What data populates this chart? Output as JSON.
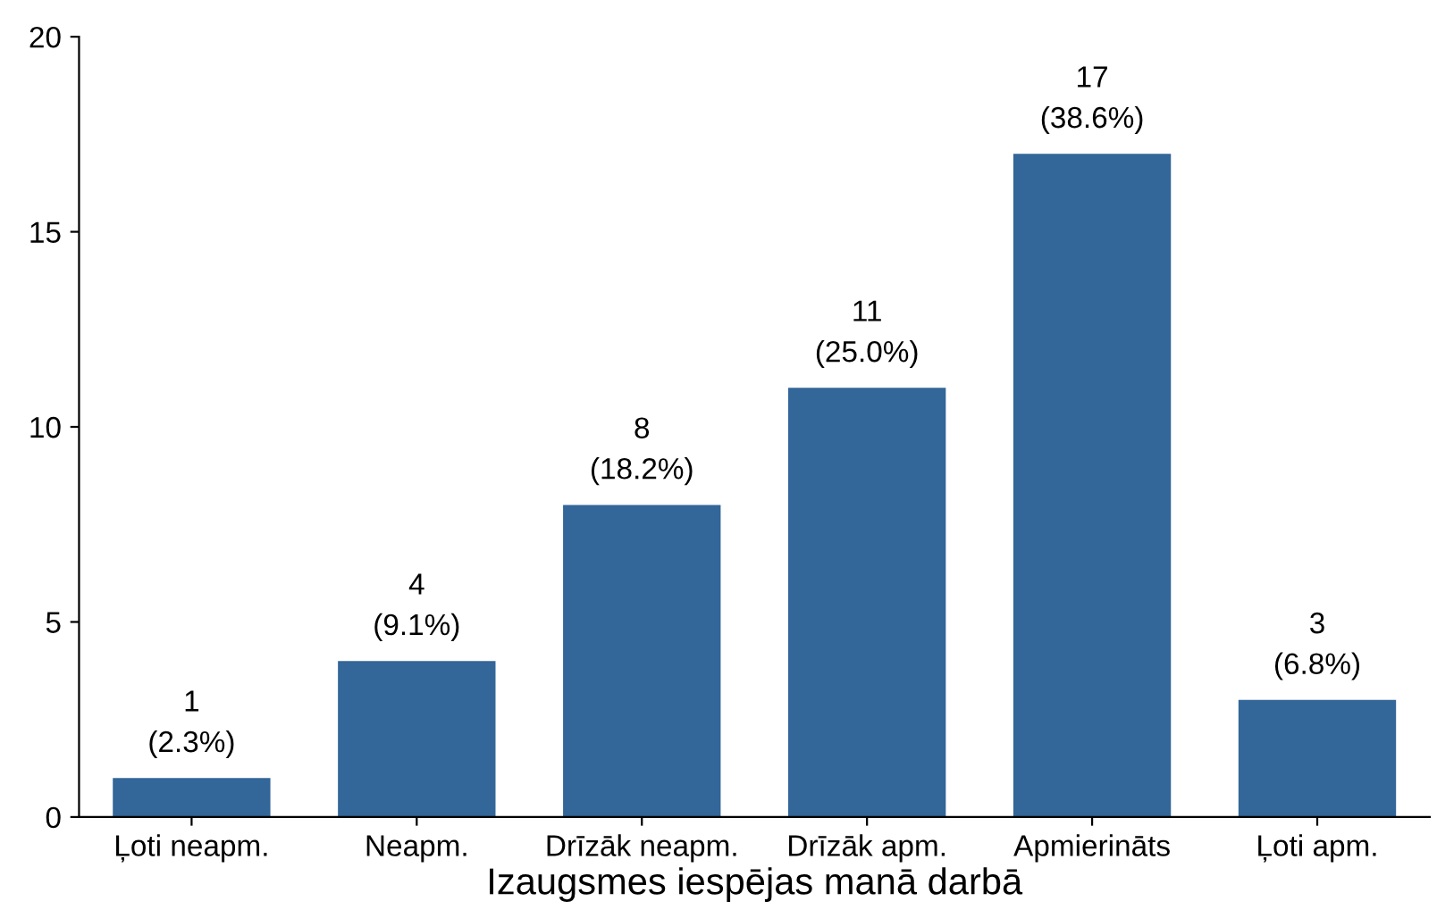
{
  "chart_data": {
    "type": "bar",
    "xlabel": "Izaugsmes iespējas manā darbā",
    "categories": [
      "Ļoti neapm.",
      "Neapm.",
      "Drīzāk neapm.",
      "Drīzāk apm.",
      "Apmierināts",
      "Ļoti apm."
    ],
    "values": [
      1,
      4,
      8,
      11,
      17,
      3
    ],
    "color": "#336699",
    "value_labels": [
      "1\n(2.3%)",
      "4\n(9.1%)",
      "8\n(18.2%)",
      "11\n(25.0%)",
      "17\n(38.6%)",
      "3\n(6.8%)"
    ],
    "ylim": [
      0,
      20
    ],
    "yticks": [
      0,
      5,
      10,
      15,
      20
    ],
    "grid": false
  }
}
